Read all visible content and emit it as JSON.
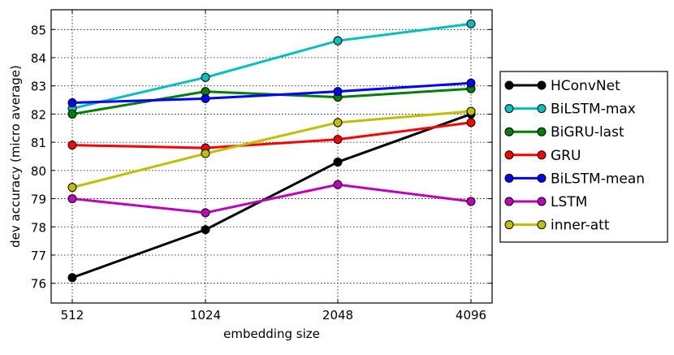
{
  "chart_data": {
    "type": "line",
    "title": "",
    "xlabel": "embedding size",
    "ylabel": "dev accuracy (micro average)",
    "categories": [
      "512",
      "1024",
      "2048",
      "4096"
    ],
    "ylim": [
      75.3,
      85.7
    ],
    "yticks": [
      76,
      77,
      78,
      79,
      80,
      81,
      82,
      83,
      84,
      85
    ],
    "grid": true,
    "legend_position": "right",
    "series": [
      {
        "name": "HConvNet",
        "color": "#000000",
        "values": [
          76.2,
          77.9,
          80.3,
          82.0
        ]
      },
      {
        "name": "BiLSTM-max",
        "color": "#00bfbf",
        "values": [
          82.2,
          83.3,
          84.6,
          85.2
        ]
      },
      {
        "name": "BiGRU-last",
        "color": "#008000",
        "values": [
          82.0,
          82.8,
          82.6,
          82.9
        ]
      },
      {
        "name": "GRU",
        "color": "#ff0000",
        "values": [
          80.9,
          80.8,
          81.1,
          81.7
        ]
      },
      {
        "name": "BiLSTM-mean",
        "color": "#0000ff",
        "values": [
          82.4,
          82.55,
          82.8,
          83.1
        ]
      },
      {
        "name": "LSTM",
        "color": "#bf00bf",
        "values": [
          79.0,
          78.5,
          79.5,
          78.9
        ]
      },
      {
        "name": "inner-att",
        "color": "#bfbf00",
        "values": [
          79.4,
          80.6,
          81.7,
          82.1
        ]
      }
    ]
  }
}
